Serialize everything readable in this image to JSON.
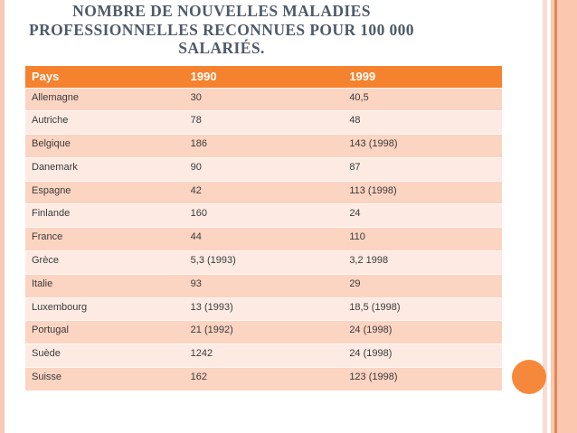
{
  "slide": {
    "title_lines": [
      "NOMBRE DE NOUVELLES MALADIES",
      "PROFESSIONNELLES RECONNUES POUR 100 000",
      "SALARIÉS."
    ],
    "colors": {
      "title_text": "#4e5a6a",
      "header_bg": "#f5822e",
      "row_dark": "#fcd4c2",
      "row_light": "#fdebe3",
      "circle": "#f6883c",
      "left_stripe": "#f7c9b6",
      "right_band": "#fbc7ae",
      "right_band_line": "#e0885c"
    }
  },
  "table": {
    "headers": [
      "Pays",
      "1990",
      "1999"
    ],
    "rows": [
      [
        "Allemagne",
        "30",
        "40,5"
      ],
      [
        "Autriche",
        "78",
        "48"
      ],
      [
        "Belgique",
        "186",
        "143 (1998)"
      ],
      [
        "Danemark",
        "90",
        "87"
      ],
      [
        "Espagne",
        "42",
        "113 (1998)"
      ],
      [
        "Finlande",
        "160",
        "24"
      ],
      [
        "France",
        "44",
        "110"
      ],
      [
        "Grèce",
        "5,3 (1993)",
        "3,2 1998"
      ],
      [
        "Italie",
        "93",
        "29"
      ],
      [
        "Luxembourg",
        "13 (1993)",
        "18,5 (1998)"
      ],
      [
        "Portugal",
        "21 (1992)",
        "24 (1998)"
      ],
      [
        "Suède",
        "1242",
        "24 (1998)"
      ],
      [
        "Suisse",
        "162",
        "123 (1998)"
      ]
    ]
  }
}
